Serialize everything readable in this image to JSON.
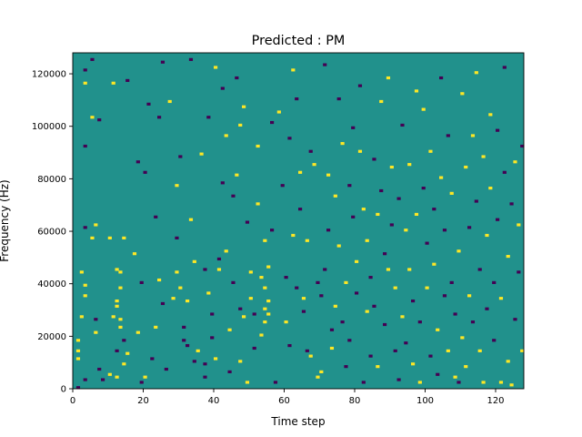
{
  "chart_data": {
    "type": "heatmap",
    "title": "Predicted : PM",
    "xlabel": "Time step",
    "ylabel": "Frequency (Hz)",
    "xlim": [
      0,
      128
    ],
    "ylim": [
      0,
      128000
    ],
    "x_ticks": [
      0,
      20,
      40,
      60,
      80,
      100,
      120
    ],
    "y_ticks": [
      0,
      20000,
      40000,
      60000,
      80000,
      100000,
      120000
    ],
    "x_tick_labels": [
      "0",
      "20",
      "40",
      "60",
      "80",
      "100",
      "120"
    ],
    "y_tick_labels": [
      "0",
      "20000",
      "40000",
      "60000",
      "80000",
      "100000",
      "120000"
    ],
    "grid": false,
    "colormap": "viridis",
    "value_colors": {
      "-1": "#440154",
      "0": "#21918c",
      "1": "#fde725"
    },
    "background_value": 0,
    "value_note": "three discrete levels; cells not listed are 0",
    "cell_width": 1,
    "cell_height": 1000,
    "cells": [
      [
        1,
        0,
        -1
      ],
      [
        1,
        11,
        1
      ],
      [
        1,
        14,
        1
      ],
      [
        1,
        18,
        1
      ],
      [
        2,
        27,
        1
      ],
      [
        2,
        44,
        1
      ],
      [
        3,
        3,
        -1
      ],
      [
        3,
        39,
        1
      ],
      [
        3,
        35,
        1
      ],
      [
        3,
        92,
        -1
      ],
      [
        3,
        61,
        -1
      ],
      [
        3,
        116,
        1
      ],
      [
        3,
        121,
        -1
      ],
      [
        5,
        125,
        -1
      ],
      [
        5,
        103,
        1
      ],
      [
        5,
        57,
        1
      ],
      [
        6,
        62,
        1
      ],
      [
        6,
        26,
        -1
      ],
      [
        6,
        21,
        1
      ],
      [
        7,
        102,
        -1
      ],
      [
        7,
        7,
        -1
      ],
      [
        8,
        3,
        -1
      ],
      [
        10,
        5,
        1
      ],
      [
        10,
        57,
        1
      ],
      [
        11,
        27,
        1
      ],
      [
        11,
        116,
        1
      ],
      [
        12,
        4,
        1
      ],
      [
        12,
        14,
        -1
      ],
      [
        12,
        33,
        1
      ],
      [
        12,
        45,
        1
      ],
      [
        12,
        31,
        1
      ],
      [
        13,
        44,
        1
      ],
      [
        13,
        38,
        1
      ],
      [
        13,
        26,
        1
      ],
      [
        13,
        23,
        1
      ],
      [
        14,
        18,
        -1
      ],
      [
        14,
        9,
        1
      ],
      [
        14,
        57,
        1
      ],
      [
        15,
        117,
        -1
      ],
      [
        15,
        13,
        1
      ],
      [
        17,
        51,
        1
      ],
      [
        18,
        21,
        1
      ],
      [
        18,
        86,
        -1
      ],
      [
        19,
        40,
        -1
      ],
      [
        19,
        2,
        -1
      ],
      [
        20,
        4,
        1
      ],
      [
        20,
        82,
        -1
      ],
      [
        21,
        108,
        -1
      ],
      [
        22,
        11,
        -1
      ],
      [
        23,
        65,
        -1
      ],
      [
        23,
        23,
        1
      ],
      [
        24,
        103,
        -1
      ],
      [
        24,
        41,
        1
      ],
      [
        25,
        124,
        -1
      ],
      [
        25,
        32,
        -1
      ],
      [
        26,
        7,
        -1
      ],
      [
        27,
        109,
        1
      ],
      [
        28,
        34,
        1
      ],
      [
        29,
        77,
        1
      ],
      [
        29,
        57,
        -1
      ],
      [
        29,
        44,
        1
      ],
      [
        30,
        88,
        -1
      ],
      [
        30,
        38,
        1
      ],
      [
        31,
        23,
        -1
      ],
      [
        31,
        18,
        -1
      ],
      [
        32,
        33,
        1
      ],
      [
        32,
        16,
        -1
      ],
      [
        33,
        125,
        -1
      ],
      [
        33,
        64,
        1
      ],
      [
        34,
        10,
        -1
      ],
      [
        34,
        48,
        1
      ],
      [
        35,
        14,
        1
      ],
      [
        36,
        89,
        1
      ],
      [
        37,
        45,
        -1
      ],
      [
        37,
        9,
        -1
      ],
      [
        37,
        4,
        -1
      ],
      [
        38,
        103,
        -1
      ],
      [
        38,
        36,
        1
      ],
      [
        39,
        28,
        -1
      ],
      [
        39,
        19,
        -1
      ],
      [
        40,
        122,
        1
      ],
      [
        40,
        11,
        1
      ],
      [
        41,
        49,
        -1
      ],
      [
        41,
        45,
        1
      ],
      [
        42,
        78,
        -1
      ],
      [
        42,
        114,
        -1
      ],
      [
        43,
        96,
        1
      ],
      [
        43,
        52,
        1
      ],
      [
        44,
        6,
        -1
      ],
      [
        44,
        22,
        1
      ],
      [
        45,
        73,
        -1
      ],
      [
        45,
        40,
        -1
      ],
      [
        46,
        118,
        -1
      ],
      [
        46,
        81,
        1
      ],
      [
        47,
        10,
        1
      ],
      [
        47,
        30,
        -1
      ],
      [
        47,
        100,
        1
      ],
      [
        48,
        27,
        1
      ],
      [
        48,
        107,
        1
      ],
      [
        49,
        2,
        1
      ],
      [
        49,
        63,
        -1
      ],
      [
        50,
        34,
        1
      ],
      [
        50,
        44,
        1
      ],
      [
        51,
        28,
        -1
      ],
      [
        51,
        15,
        -1
      ],
      [
        52,
        92,
        1
      ],
      [
        52,
        70,
        1
      ],
      [
        53,
        42,
        1
      ],
      [
        53,
        20,
        1
      ],
      [
        54,
        25,
        1
      ],
      [
        54,
        30,
        1
      ],
      [
        54,
        38,
        1
      ],
      [
        54,
        56,
        1
      ],
      [
        55,
        46,
        1
      ],
      [
        55,
        33,
        1
      ],
      [
        55,
        28,
        1
      ],
      [
        56,
        101,
        -1
      ],
      [
        56,
        60,
        -1
      ],
      [
        57,
        2,
        -1
      ],
      [
        58,
        105,
        1
      ],
      [
        59,
        77,
        -1
      ],
      [
        60,
        25,
        1
      ],
      [
        60,
        42,
        -1
      ],
      [
        61,
        16,
        -1
      ],
      [
        61,
        95,
        -1
      ],
      [
        62,
        121,
        1
      ],
      [
        62,
        58,
        1
      ],
      [
        63,
        38,
        -1
      ],
      [
        63,
        110,
        -1
      ],
      [
        64,
        82,
        1
      ],
      [
        64,
        68,
        -1
      ],
      [
        65,
        29,
        -1
      ],
      [
        65,
        34,
        1
      ],
      [
        66,
        14,
        -1
      ],
      [
        66,
        56,
        1
      ],
      [
        67,
        12,
        1
      ],
      [
        67,
        90,
        -1
      ],
      [
        68,
        85,
        1
      ],
      [
        69,
        4,
        1
      ],
      [
        69,
        40,
        -1
      ],
      [
        70,
        6,
        1
      ],
      [
        70,
        35,
        -1
      ],
      [
        71,
        123,
        -1
      ],
      [
        71,
        45,
        -1
      ],
      [
        72,
        81,
        1
      ],
      [
        72,
        60,
        -1
      ],
      [
        73,
        15,
        1
      ],
      [
        73,
        22,
        -1
      ],
      [
        74,
        73,
        1
      ],
      [
        74,
        31,
        1
      ],
      [
        75,
        110,
        -1
      ],
      [
        75,
        54,
        1
      ],
      [
        76,
        93,
        1
      ],
      [
        76,
        25,
        -1
      ],
      [
        77,
        40,
        1
      ],
      [
        77,
        8,
        -1
      ],
      [
        78,
        77,
        -1
      ],
      [
        78,
        18,
        -1
      ],
      [
        79,
        65,
        -1
      ],
      [
        79,
        99,
        -1
      ],
      [
        80,
        48,
        1
      ],
      [
        80,
        36,
        -1
      ],
      [
        81,
        115,
        -1
      ],
      [
        81,
        90,
        1
      ],
      [
        82,
        68,
        1
      ],
      [
        82,
        2,
        -1
      ],
      [
        83,
        56,
        1
      ],
      [
        83,
        29,
        1
      ],
      [
        84,
        12,
        -1
      ],
      [
        84,
        42,
        -1
      ],
      [
        85,
        87,
        -1
      ],
      [
        85,
        31,
        -1
      ],
      [
        86,
        66,
        1
      ],
      [
        86,
        8,
        1
      ],
      [
        87,
        75,
        -1
      ],
      [
        87,
        109,
        1
      ],
      [
        88,
        24,
        -1
      ],
      [
        88,
        51,
        -1
      ],
      [
        89,
        118,
        1
      ],
      [
        89,
        45,
        1
      ],
      [
        90,
        84,
        1
      ],
      [
        90,
        62,
        -1
      ],
      [
        91,
        38,
        1
      ],
      [
        91,
        14,
        -1
      ],
      [
        92,
        3,
        -1
      ],
      [
        92,
        72,
        -1
      ],
      [
        93,
        100,
        -1
      ],
      [
        93,
        27,
        1
      ],
      [
        94,
        60,
        1
      ],
      [
        94,
        17,
        -1
      ],
      [
        95,
        85,
        1
      ],
      [
        95,
        45,
        1
      ],
      [
        96,
        9,
        1
      ],
      [
        96,
        33,
        -1
      ],
      [
        97,
        113,
        1
      ],
      [
        97,
        66,
        1
      ],
      [
        98,
        25,
        -1
      ],
      [
        98,
        2,
        1
      ],
      [
        99,
        76,
        -1
      ],
      [
        99,
        106,
        1
      ],
      [
        100,
        55,
        -1
      ],
      [
        100,
        38,
        1
      ],
      [
        101,
        12,
        -1
      ],
      [
        101,
        90,
        1
      ],
      [
        102,
        68,
        -1
      ],
      [
        102,
        47,
        1
      ],
      [
        103,
        22,
        1
      ],
      [
        103,
        5,
        -1
      ],
      [
        104,
        118,
        -1
      ],
      [
        104,
        80,
        1
      ],
      [
        105,
        35,
        -1
      ],
      [
        105,
        60,
        -1
      ],
      [
        106,
        14,
        1
      ],
      [
        106,
        96,
        -1
      ],
      [
        107,
        40,
        -1
      ],
      [
        107,
        74,
        1
      ],
      [
        108,
        4,
        1
      ],
      [
        108,
        28,
        -1
      ],
      [
        109,
        52,
        1
      ],
      [
        109,
        2,
        -1
      ],
      [
        110,
        112,
        1
      ],
      [
        110,
        19,
        1
      ],
      [
        111,
        84,
        1
      ],
      [
        111,
        8,
        1
      ],
      [
        112,
        61,
        -1
      ],
      [
        112,
        35,
        1
      ],
      [
        113,
        96,
        1
      ],
      [
        113,
        25,
        -1
      ],
      [
        114,
        71,
        -1
      ],
      [
        114,
        120,
        1
      ],
      [
        115,
        45,
        -1
      ],
      [
        115,
        14,
        1
      ],
      [
        116,
        88,
        1
      ],
      [
        116,
        2,
        1
      ],
      [
        117,
        58,
        1
      ],
      [
        117,
        30,
        -1
      ],
      [
        118,
        104,
        1
      ],
      [
        118,
        76,
        1
      ],
      [
        119,
        40,
        -1
      ],
      [
        119,
        18,
        -1
      ],
      [
        120,
        64,
        -1
      ],
      [
        120,
        98,
        -1
      ],
      [
        121,
        2,
        1
      ],
      [
        121,
        34,
        1
      ],
      [
        122,
        122,
        -1
      ],
      [
        122,
        82,
        -1
      ],
      [
        123,
        50,
        1
      ],
      [
        123,
        10,
        1
      ],
      [
        124,
        70,
        -1
      ],
      [
        124,
        1,
        1
      ],
      [
        125,
        26,
        -1
      ],
      [
        125,
        86,
        1
      ],
      [
        126,
        44,
        -1
      ],
      [
        126,
        62,
        1
      ],
      [
        127,
        14,
        1
      ],
      [
        127,
        92,
        -1
      ]
    ]
  }
}
